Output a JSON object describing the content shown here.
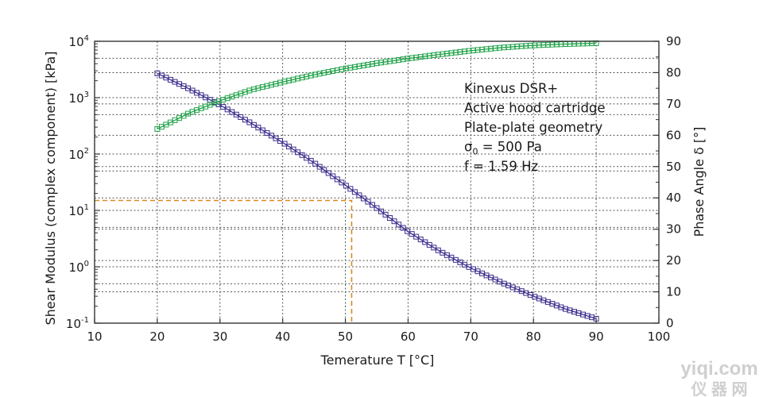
{
  "chart_data": {
    "type": "scatter",
    "xlabel": "Temerature T [°C]",
    "ylabel_left": "Shear Modulus (complex component) [kPa]",
    "ylabel_right": "Phase Angle δ [°]",
    "xlim": [
      10,
      100
    ],
    "xticks": [
      "10",
      "20",
      "30",
      "40",
      "50",
      "60",
      "70",
      "80",
      "90",
      "100"
    ],
    "y_left_scale": "log",
    "y_left_lim": [
      0.1,
      10000
    ],
    "y_left_ticks": [
      {
        "base": "10",
        "exp": "-1"
      },
      {
        "base": "10",
        "exp": "0"
      },
      {
        "base": "10",
        "exp": "1"
      },
      {
        "base": "10",
        "exp": "2"
      },
      {
        "base": "10",
        "exp": "3"
      },
      {
        "base": "10",
        "exp": "4"
      }
    ],
    "y_right_lim": [
      0,
      90
    ],
    "y_right_ticks": [
      "0",
      "10",
      "20",
      "30",
      "40",
      "50",
      "60",
      "70",
      "80",
      "90"
    ],
    "grid": true,
    "series": [
      {
        "axis": "left",
        "color": "#3a2d8c",
        "marker": "square-open",
        "x": [
          20,
          25,
          30,
          35,
          40,
          45,
          50,
          55,
          60,
          65,
          70,
          75,
          80,
          85,
          90
        ],
        "values": [
          2700,
          1450,
          740,
          350,
          160,
          70,
          28,
          11,
          4.2,
          1.9,
          0.95,
          0.52,
          0.3,
          0.18,
          0.12
        ]
      },
      {
        "axis": "right",
        "color": "#22a34a",
        "marker": "square-open",
        "x": [
          20,
          25,
          30,
          35,
          40,
          45,
          50,
          55,
          60,
          65,
          70,
          75,
          80,
          85,
          90
        ],
        "values": [
          62,
          67,
          71,
          74.5,
          77,
          79.3,
          81.3,
          83,
          84.5,
          85.8,
          87,
          88,
          88.7,
          89.1,
          89.4
        ]
      }
    ],
    "reference_line": {
      "x": 51,
      "y": 15,
      "color": "#d98a1e",
      "style": "dashed"
    },
    "annotation": [
      {
        "text": "Kinexus DSR+"
      },
      {
        "text": "Active hood cartridge"
      },
      {
        "text": "Plate-plate geometry"
      },
      {
        "symbol": "σ",
        "sub": "0",
        "rest": " = 500 Pa"
      },
      {
        "text": "f = 1.59 Hz"
      }
    ]
  },
  "watermark": {
    "line1": "yiqi.com",
    "line2": "仪 器 网"
  }
}
